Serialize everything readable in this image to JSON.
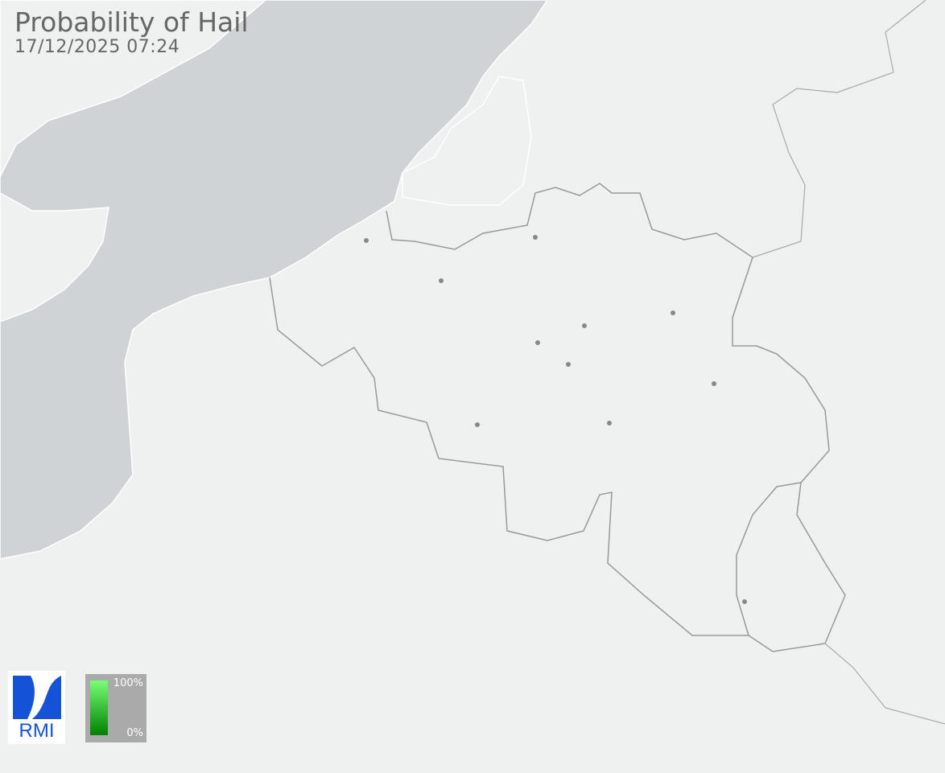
{
  "header": {
    "title": "Probability of Hail",
    "timestamp": "17/12/2025 07:24"
  },
  "legend": {
    "max_label": "100%",
    "min_label": "0%",
    "color_low": "#008000",
    "color_high": "#77ff77",
    "background": "#aaaaaa"
  },
  "logo": {
    "text": "RMI",
    "color": "#1452d6"
  },
  "map": {
    "sea_color": "#d0d3d5",
    "land_color": "#eff0f0",
    "border_color": "#999999",
    "city_color": "#888888"
  }
}
